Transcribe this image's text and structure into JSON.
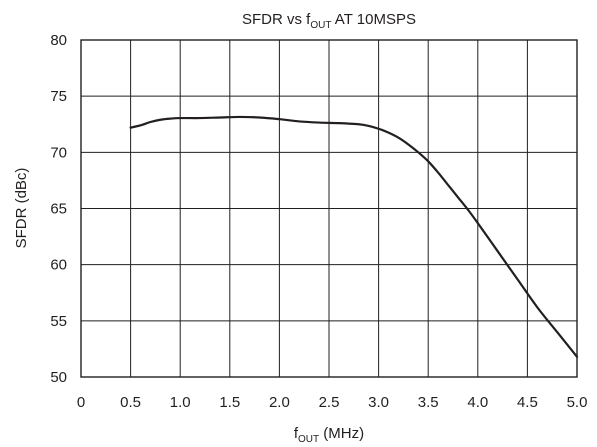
{
  "chart_data": {
    "type": "line",
    "title": {
      "prefix": "SFDR vs f",
      "sub": "OUT",
      "suffix": " AT 10MSPS"
    },
    "xlabel": {
      "prefix": "f",
      "sub": "OUT",
      "suffix": " (MHz)"
    },
    "ylabel": "SFDR (dBc)",
    "xlim": [
      0,
      5
    ],
    "ylim": [
      50,
      80
    ],
    "xticks": [
      "0",
      "0.5",
      "1.0",
      "1.5",
      "2.0",
      "2.5",
      "3.0",
      "3.5",
      "4.0",
      "4.5",
      "5.0"
    ],
    "yticks": [
      "50",
      "55",
      "60",
      "65",
      "70",
      "75",
      "80"
    ],
    "grid": true,
    "series": [
      {
        "x": [
          0.5,
          0.6,
          0.7,
          0.8,
          0.9,
          1.0,
          1.2,
          1.4,
          1.6,
          1.8,
          2.0,
          2.2,
          2.4,
          2.6,
          2.8,
          2.9,
          3.0,
          3.1,
          3.2,
          3.3,
          3.4,
          3.5,
          3.6,
          3.7,
          3.8,
          3.9,
          4.0,
          4.2,
          4.4,
          4.6,
          4.8,
          5.0
        ],
        "y": [
          72.2,
          72.4,
          72.7,
          72.9,
          73.0,
          73.05,
          73.05,
          73.1,
          73.15,
          73.1,
          72.95,
          72.75,
          72.65,
          72.6,
          72.5,
          72.35,
          72.1,
          71.75,
          71.3,
          70.7,
          70.0,
          69.2,
          68.2,
          67.1,
          66.0,
          64.9,
          63.7,
          61.2,
          58.7,
          56.2,
          54.0,
          51.8
        ]
      }
    ],
    "line_color": "#231f20"
  }
}
